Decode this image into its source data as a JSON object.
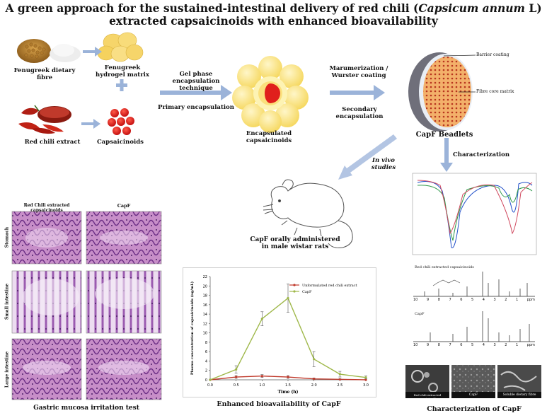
{
  "title": {
    "line1_pre": "A green approach for the sustained-intestinal delivery of red chili (",
    "line1_italic": "Capsicum annum",
    "line1_post": " L)",
    "line2": "extracted capsaicinoids with enhanced bioavailability"
  },
  "inputs": {
    "fenugreek_fibre": "Fenugreek dietary fibre",
    "fenugreek_hydrogel": "Fenugreek hydrogel matrix",
    "red_chili_extract": "Red chili extract",
    "capsaicinoids": "Capsaicinoids"
  },
  "process": {
    "gel_phase": "Gel phase encapsulation technique",
    "primary": "Primary encapsulation",
    "encapsulated": "Encapsulated capsaicinoids",
    "marumerization": "Marumerization / Wurster coating",
    "secondary": "Secondary encapsulation",
    "beadlets": "CapF Beadlets",
    "barrier_coating": "Barrier coating",
    "fibre_core": "Fibre core matrix"
  },
  "branches": {
    "in_vivo": "In vivo studies",
    "characterization": "Characterization",
    "rat_caption": "CapF orally administered in male wistar rats"
  },
  "histology": {
    "col1": "Red Chili extracted capsaicinoids",
    "col2": "CapF",
    "rows": [
      "Stomach",
      "Small intestine",
      "Large intestine"
    ],
    "caption": "Gastric mucosa irritation test"
  },
  "colors": {
    "arrow": "#9bb3d9",
    "capsaicin_red": "#e0201c",
    "bead_yellow": "#fde98a",
    "capf_line": "#9fb84a",
    "unformulated_line": "#c0392b"
  },
  "chart_data": {
    "type": "line",
    "title": "",
    "xlabel": "Time (h)",
    "ylabel": "Plasma concentration of capsaicinoids (ng/mL)",
    "x": [
      0.0,
      0.5,
      1.0,
      1.5,
      2.0,
      2.5,
      3.0
    ],
    "xticks": [
      "0.0",
      "0.5",
      "1.0",
      "1.5",
      "2.0",
      "2.5",
      "3.0"
    ],
    "yticks": [
      "0",
      "2",
      "4",
      "6",
      "8",
      "10",
      "12",
      "14",
      "16",
      "18",
      "20",
      "22"
    ],
    "xlim": [
      0,
      3
    ],
    "ylim": [
      0,
      22
    ],
    "legend_position": "top-right",
    "series": [
      {
        "name": "Unformulated red chili extract",
        "values": [
          0.0,
          0.6,
          0.8,
          0.6,
          0.2,
          0.1,
          0.0
        ],
        "errors": [
          0.0,
          0.3,
          0.3,
          0.3,
          0.2,
          0.1,
          0.0
        ],
        "color": "#c0392b"
      },
      {
        "name": "CapF",
        "values": [
          0.0,
          2.2,
          13.0,
          17.4,
          4.4,
          1.2,
          0.5
        ],
        "errors": [
          0.0,
          0.8,
          1.5,
          3.0,
          1.6,
          0.6,
          0.3
        ],
        "color": "#9fb84a"
      }
    ]
  },
  "bioavailability_caption": "Enhanced bioavailability of CapF",
  "characterization": {
    "nmr1_label": "Red chili extracted capsaicinoids",
    "nmr2_label": "CapF",
    "nmr_axis": [
      "10",
      "9",
      "8",
      "7",
      "6",
      "5",
      "4",
      "3",
      "2",
      "1",
      "ppm"
    ],
    "sem_labels": [
      "Red chili extracted capsaicinoids",
      "CapF",
      "Soluble dietary fibre"
    ],
    "caption": "Characterization of CapF"
  }
}
